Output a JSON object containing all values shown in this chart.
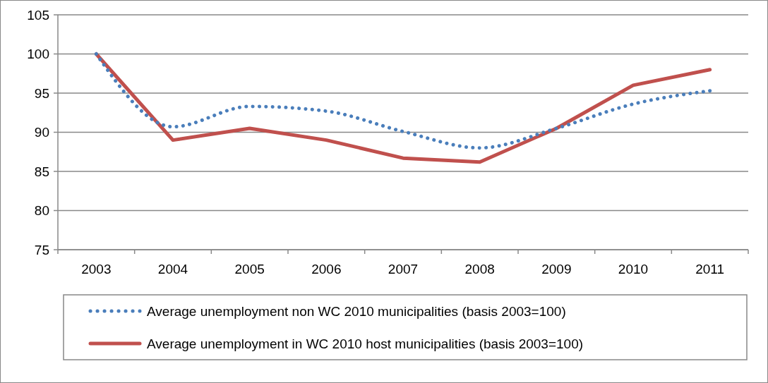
{
  "chart_data": {
    "type": "line",
    "categories": [
      "2003",
      "2004",
      "2005",
      "2006",
      "2007",
      "2008",
      "2009",
      "2010",
      "2011"
    ],
    "series": [
      {
        "name": "Average unemployment non WC 2010 municipalities (basis 2003=100)",
        "color": "#4a7ebb",
        "line_style": "dotted",
        "values": [
          100,
          90.7,
          93.3,
          92.7,
          90.1,
          88.0,
          90.5,
          93.6,
          95.3
        ]
      },
      {
        "name": "Average unemployment in WC 2010 host municipalities (basis 2003=100)",
        "color": "#c0504d",
        "line_style": "solid",
        "values": [
          100,
          89.0,
          90.5,
          89.0,
          86.7,
          86.2,
          90.5,
          96.0,
          98.0
        ]
      }
    ],
    "ylim": [
      75,
      105
    ],
    "yticks": [
      75,
      80,
      85,
      90,
      95,
      100,
      105
    ],
    "grid": "y",
    "legend": "bottom",
    "marker": "none"
  }
}
